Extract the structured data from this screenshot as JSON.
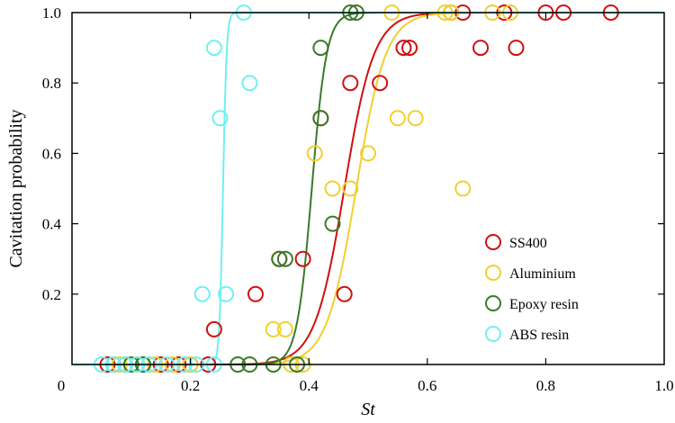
{
  "chart_data": {
    "type": "scatter",
    "xlabel": "St",
    "ylabel": "Cavitation probability",
    "xlim": [
      0,
      1.0
    ],
    "ylim": [
      0,
      1.0
    ],
    "x_ticks": [
      "0",
      "0.2",
      "0.4",
      "0.6",
      "0.8",
      "1.0"
    ],
    "y_ticks": [
      "0.2",
      "0.4",
      "0.6",
      "0.8",
      "1.0"
    ],
    "grid": false,
    "legend_position": "bottom-right",
    "series": [
      {
        "name": "SS400",
        "color": "#d01010",
        "points": [
          [
            0.24,
            0.1
          ],
          [
            0.31,
            0.2
          ],
          [
            0.35,
            0.3
          ],
          [
            0.39,
            0.3
          ],
          [
            0.42,
            0.7
          ],
          [
            0.46,
            0.2
          ],
          [
            0.47,
            0.8
          ],
          [
            0.52,
            0.8
          ],
          [
            0.56,
            0.9
          ],
          [
            0.57,
            0.9
          ],
          [
            0.64,
            1.0
          ],
          [
            0.66,
            1.0
          ],
          [
            0.69,
            0.9
          ],
          [
            0.73,
            1.0
          ],
          [
            0.75,
            0.9
          ],
          [
            0.8,
            1.0
          ],
          [
            0.83,
            1.0
          ],
          [
            0.91,
            1.0
          ],
          [
            0.06,
            0.0
          ],
          [
            0.09,
            0.0
          ],
          [
            0.12,
            0.0
          ],
          [
            0.15,
            0.0
          ],
          [
            0.18,
            0.0
          ],
          [
            0.2,
            0.0
          ],
          [
            0.23,
            0.0
          ]
        ],
        "fit_curve": {
          "midpoint": 0.46,
          "width": 0.05
        }
      },
      {
        "name": "Aluminium",
        "color": "#f0d030",
        "points": [
          [
            0.34,
            0.1
          ],
          [
            0.36,
            0.1
          ],
          [
            0.41,
            0.6
          ],
          [
            0.44,
            0.5
          ],
          [
            0.47,
            0.5
          ],
          [
            0.5,
            0.6
          ],
          [
            0.55,
            0.7
          ],
          [
            0.58,
            0.7
          ],
          [
            0.54,
            1.0
          ],
          [
            0.63,
            1.0
          ],
          [
            0.64,
            1.0
          ],
          [
            0.66,
            0.5
          ],
          [
            0.71,
            1.0
          ],
          [
            0.74,
            1.0
          ],
          [
            0.08,
            0.0
          ],
          [
            0.11,
            0.0
          ],
          [
            0.14,
            0.0
          ],
          [
            0.17,
            0.0
          ],
          [
            0.2,
            0.0
          ],
          [
            0.37,
            0.0
          ],
          [
            0.39,
            0.0
          ]
        ],
        "fit_curve": {
          "midpoint": 0.48,
          "width": 0.05
        }
      },
      {
        "name": "Epoxy resin",
        "color": "#3a7a2a",
        "points": [
          [
            0.35,
            0.3
          ],
          [
            0.36,
            0.3
          ],
          [
            0.44,
            0.4
          ],
          [
            0.42,
            0.7
          ],
          [
            0.42,
            0.9
          ],
          [
            0.47,
            1.0
          ],
          [
            0.48,
            1.0
          ],
          [
            0.07,
            0.0
          ],
          [
            0.1,
            0.0
          ],
          [
            0.12,
            0.0
          ],
          [
            0.28,
            0.0
          ],
          [
            0.3,
            0.0
          ],
          [
            0.34,
            0.0
          ],
          [
            0.38,
            0.0
          ]
        ],
        "fit_curve": {
          "midpoint": 0.405,
          "width": 0.025
        }
      },
      {
        "name": "ABS resin",
        "color": "#70f0f0",
        "points": [
          [
            0.22,
            0.2
          ],
          [
            0.26,
            0.2
          ],
          [
            0.25,
            0.7
          ],
          [
            0.24,
            0.9
          ],
          [
            0.3,
            0.8
          ],
          [
            0.29,
            1.0
          ],
          [
            0.05,
            0.0
          ],
          [
            0.07,
            0.0
          ],
          [
            0.09,
            0.0
          ],
          [
            0.11,
            0.0
          ],
          [
            0.13,
            0.0
          ],
          [
            0.16,
            0.0
          ],
          [
            0.19,
            0.0
          ],
          [
            0.21,
            0.0
          ],
          [
            0.24,
            0.0
          ]
        ],
        "fit_curve": {
          "midpoint": 0.255,
          "width": 0.006
        }
      }
    ]
  }
}
